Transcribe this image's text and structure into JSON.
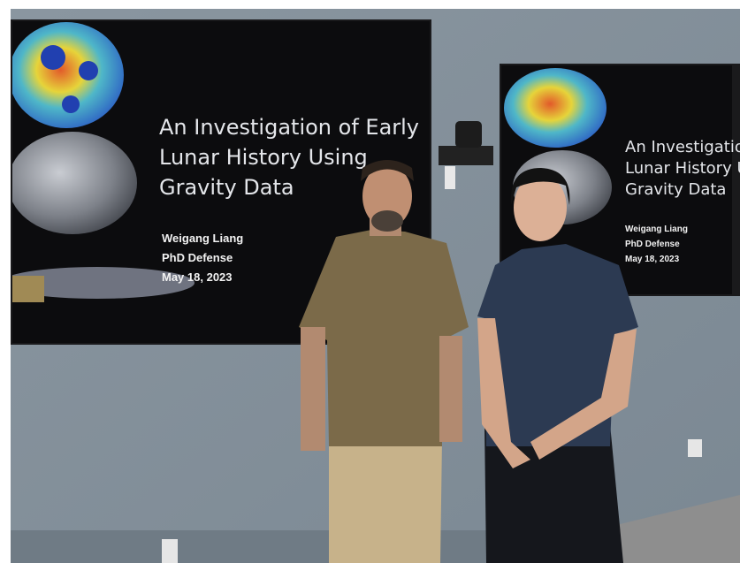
{
  "screens": [
    {
      "title_lines": [
        "An Investigation of Early",
        "Lunar History Using",
        "Gravity Data"
      ],
      "presenter": "Weigang Liang",
      "event": "PhD Defense",
      "date": "May 18, 2023"
    },
    {
      "title_lines": [
        "An Investigation of",
        "Lunar History Using",
        "Gravity Data"
      ],
      "presenter": "Weigang Liang",
      "event": "PhD Defense",
      "date": "May 18, 2023"
    }
  ]
}
